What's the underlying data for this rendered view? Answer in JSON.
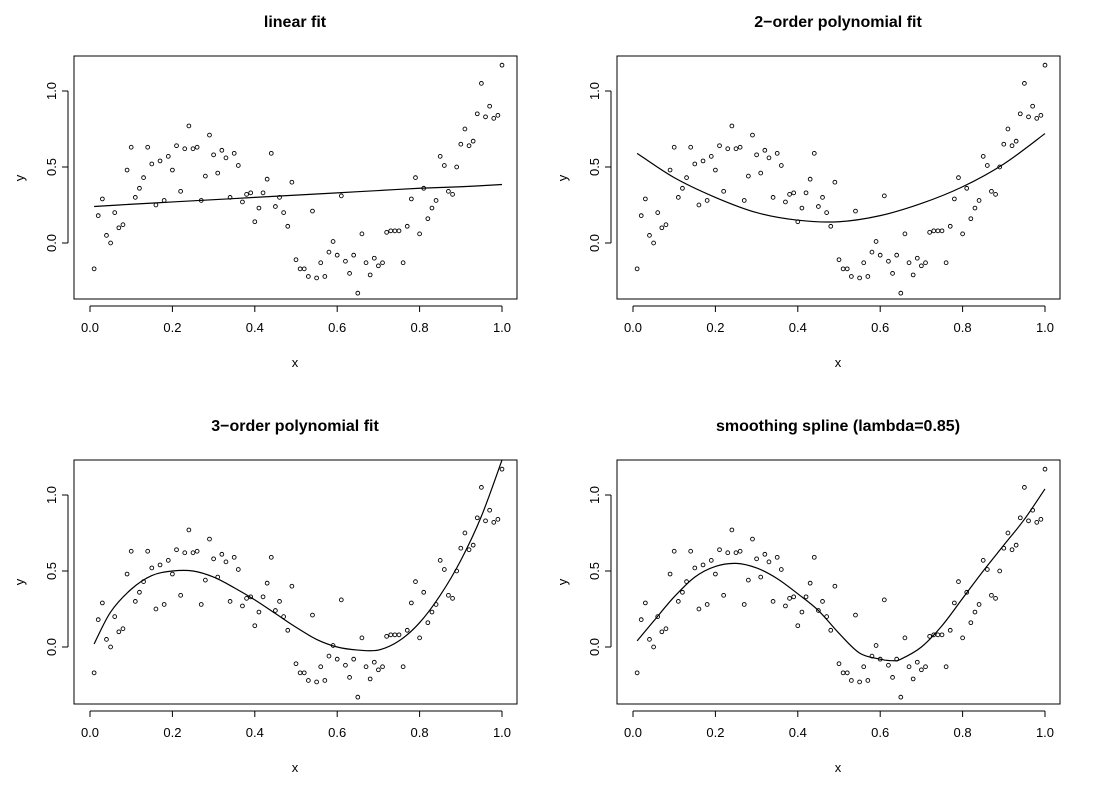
{
  "figure": {
    "background": "#ffffff",
    "ink": "#000000"
  },
  "chart_data": [
    {
      "type": "scatter",
      "title": "linear fit",
      "xlabel": "x",
      "ylabel": "y",
      "xlim": [
        0.0,
        1.0
      ],
      "ylim": [
        -0.35,
        1.2
      ],
      "x_ticks": [
        0.0,
        0.2,
        0.4,
        0.6,
        0.8,
        1.0
      ],
      "y_ticks": [
        0.0,
        0.5,
        1.0
      ],
      "x_tick_labels": [
        "0.0",
        "0.2",
        "0.4",
        "0.6",
        "0.8",
        "1.0"
      ],
      "y_tick_labels": [
        "0.0",
        "0.5",
        "1.0"
      ],
      "fit": {
        "name": "linear fit",
        "x": [
          0.01,
          0.1,
          0.2,
          0.3,
          0.4,
          0.5,
          0.6,
          0.7,
          0.8,
          0.9,
          1.0
        ],
        "y": [
          0.24,
          0.255,
          0.27,
          0.285,
          0.3,
          0.315,
          0.33,
          0.345,
          0.36,
          0.37,
          0.385
        ]
      }
    },
    {
      "type": "scatter",
      "title": "2−order polynomial fit",
      "xlabel": "x",
      "ylabel": "y",
      "xlim": [
        0.0,
        1.0
      ],
      "ylim": [
        -0.35,
        1.2
      ],
      "x_ticks": [
        0.0,
        0.2,
        0.4,
        0.6,
        0.8,
        1.0
      ],
      "y_ticks": [
        0.0,
        0.5,
        1.0
      ],
      "x_tick_labels": [
        "0.0",
        "0.2",
        "0.4",
        "0.6",
        "0.8",
        "1.0"
      ],
      "y_tick_labels": [
        "0.0",
        "0.5",
        "1.0"
      ],
      "fit": {
        "name": "2-order polynomial fit",
        "x": [
          0.01,
          0.1,
          0.2,
          0.3,
          0.4,
          0.5,
          0.6,
          0.7,
          0.8,
          0.9,
          1.0
        ],
        "y": [
          0.59,
          0.43,
          0.3,
          0.2,
          0.15,
          0.14,
          0.18,
          0.26,
          0.37,
          0.52,
          0.72
        ]
      }
    },
    {
      "type": "scatter",
      "title": "3−order polynomial fit",
      "xlabel": "x",
      "ylabel": "y",
      "xlim": [
        0.0,
        1.0
      ],
      "ylim": [
        -0.35,
        1.2
      ],
      "x_ticks": [
        0.0,
        0.2,
        0.4,
        0.6,
        0.8,
        1.0
      ],
      "y_ticks": [
        0.0,
        0.5,
        1.0
      ],
      "x_tick_labels": [
        "0.0",
        "0.2",
        "0.4",
        "0.6",
        "0.8",
        "1.0"
      ],
      "y_tick_labels": [
        "0.0",
        "0.5",
        "1.0"
      ],
      "fit": {
        "name": "3-order polynomial fit",
        "x": [
          0.01,
          0.05,
          0.1,
          0.15,
          0.2,
          0.25,
          0.3,
          0.35,
          0.4,
          0.45,
          0.5,
          0.55,
          0.6,
          0.65,
          0.7,
          0.75,
          0.8,
          0.85,
          0.9,
          0.95,
          1.0
        ],
        "y": [
          0.02,
          0.23,
          0.38,
          0.47,
          0.5,
          0.5,
          0.46,
          0.39,
          0.31,
          0.22,
          0.13,
          0.05,
          0.0,
          -0.02,
          -0.02,
          0.04,
          0.16,
          0.34,
          0.57,
          0.86,
          1.23
        ]
      }
    },
    {
      "type": "scatter",
      "title": "smoothing spline (lambda=0.85)",
      "xlabel": "x",
      "ylabel": "y",
      "xlim": [
        0.0,
        1.0
      ],
      "ylim": [
        -0.35,
        1.2
      ],
      "x_ticks": [
        0.0,
        0.2,
        0.4,
        0.6,
        0.8,
        1.0
      ],
      "y_ticks": [
        0.0,
        0.5,
        1.0
      ],
      "x_tick_labels": [
        "0.0",
        "0.2",
        "0.4",
        "0.6",
        "0.8",
        "1.0"
      ],
      "y_tick_labels": [
        "0.0",
        "0.5",
        "1.0"
      ],
      "fit": {
        "name": "smoothing spline",
        "x": [
          0.01,
          0.05,
          0.1,
          0.15,
          0.2,
          0.25,
          0.3,
          0.35,
          0.4,
          0.45,
          0.5,
          0.55,
          0.6,
          0.63,
          0.65,
          0.7,
          0.75,
          0.8,
          0.85,
          0.9,
          0.95,
          1.0
        ],
        "y": [
          0.04,
          0.17,
          0.33,
          0.46,
          0.53,
          0.55,
          0.52,
          0.45,
          0.35,
          0.24,
          0.09,
          -0.04,
          -0.08,
          -0.09,
          -0.08,
          0.0,
          0.14,
          0.32,
          0.5,
          0.67,
          0.84,
          1.04
        ]
      }
    }
  ],
  "scatter_points": {
    "x": [
      0.01,
      0.02,
      0.03,
      0.04,
      0.05,
      0.06,
      0.07,
      0.08,
      0.09,
      0.1,
      0.11,
      0.12,
      0.13,
      0.14,
      0.15,
      0.16,
      0.17,
      0.18,
      0.19,
      0.2,
      0.21,
      0.22,
      0.23,
      0.24,
      0.25,
      0.26,
      0.27,
      0.28,
      0.29,
      0.3,
      0.31,
      0.32,
      0.33,
      0.34,
      0.35,
      0.36,
      0.37,
      0.38,
      0.39,
      0.4,
      0.41,
      0.42,
      0.43,
      0.44,
      0.45,
      0.46,
      0.47,
      0.48,
      0.49,
      0.5,
      0.51,
      0.52,
      0.53,
      0.54,
      0.55,
      0.56,
      0.57,
      0.58,
      0.59,
      0.6,
      0.61,
      0.62,
      0.63,
      0.64,
      0.65,
      0.66,
      0.67,
      0.68,
      0.69,
      0.7,
      0.71,
      0.72,
      0.73,
      0.74,
      0.75,
      0.76,
      0.77,
      0.78,
      0.79,
      0.8,
      0.81,
      0.82,
      0.83,
      0.84,
      0.85,
      0.86,
      0.87,
      0.88,
      0.89,
      0.9,
      0.91,
      0.92,
      0.93,
      0.94,
      0.95,
      0.96,
      0.97,
      0.98,
      0.99,
      1.0
    ],
    "y": [
      -0.17,
      0.18,
      0.29,
      0.05,
      0.0,
      0.2,
      0.1,
      0.12,
      0.48,
      0.63,
      0.3,
      0.36,
      0.43,
      0.63,
      0.52,
      0.25,
      0.54,
      0.28,
      0.57,
      0.48,
      0.64,
      0.34,
      0.62,
      0.77,
      0.62,
      0.63,
      0.28,
      0.44,
      0.71,
      0.58,
      0.46,
      0.61,
      0.56,
      0.3,
      0.59,
      0.51,
      0.27,
      0.32,
      0.33,
      0.14,
      0.23,
      0.33,
      0.42,
      0.59,
      0.24,
      0.3,
      0.2,
      0.11,
      0.4,
      -0.11,
      -0.17,
      -0.17,
      -0.22,
      0.21,
      -0.23,
      -0.13,
      -0.22,
      -0.06,
      0.01,
      -0.08,
      0.31,
      -0.12,
      -0.2,
      -0.08,
      -0.33,
      0.06,
      -0.13,
      -0.21,
      -0.1,
      -0.15,
      -0.13,
      0.07,
      0.08,
      0.08,
      0.08,
      -0.13,
      0.11,
      0.29,
      0.43,
      0.06,
      0.36,
      0.16,
      0.23,
      0.28,
      0.57,
      0.51,
      0.34,
      0.32,
      0.5,
      0.65,
      0.75,
      0.64,
      0.67,
      0.85,
      1.05,
      0.83,
      0.9,
      0.82,
      0.84,
      1.17
    ]
  }
}
